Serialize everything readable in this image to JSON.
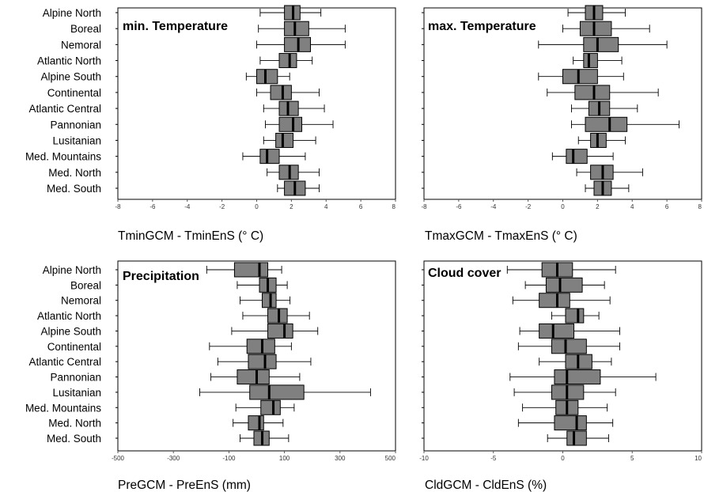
{
  "chart_data": [
    {
      "type": "box",
      "title": "min. Temperature",
      "xlabel": "TminGCM - TminEnS (°  C)",
      "xlim": [
        -8,
        8
      ],
      "xticks": [
        "-8",
        "-6",
        "-4",
        "-2",
        "0",
        "2",
        "4",
        "6",
        "8"
      ],
      "xtick_values": [
        -8,
        -6,
        -4,
        -2,
        0,
        2,
        4,
        6,
        8
      ],
      "categories": [
        "Alpine North",
        "Boreal",
        "Nemoral",
        "Atlantic North",
        "Alpine South",
        "Continental",
        "Atlantic Central",
        "Pannonian",
        "Lusitanian",
        "Med. Mountains",
        "Med. North",
        "Med. South"
      ],
      "boxes": [
        {
          "whisker_low": 0.2,
          "q1": 1.6,
          "median": 2.1,
          "q3": 2.5,
          "whisker_high": 3.7
        },
        {
          "whisker_low": 0.1,
          "q1": 1.6,
          "median": 2.2,
          "q3": 3.0,
          "whisker_high": 5.1
        },
        {
          "whisker_low": 0.0,
          "q1": 1.6,
          "median": 2.4,
          "q3": 3.1,
          "whisker_high": 5.1
        },
        {
          "whisker_low": 0.2,
          "q1": 1.3,
          "median": 1.9,
          "q3": 2.3,
          "whisker_high": 3.2
        },
        {
          "whisker_low": -0.6,
          "q1": 0.0,
          "median": 0.5,
          "q3": 1.2,
          "whisker_high": 1.9
        },
        {
          "whisker_low": 0.0,
          "q1": 0.8,
          "median": 1.5,
          "q3": 2.0,
          "whisker_high": 3.6
        },
        {
          "whisker_low": 0.4,
          "q1": 1.3,
          "median": 1.8,
          "q3": 2.4,
          "whisker_high": 3.9
        },
        {
          "whisker_low": 0.5,
          "q1": 1.3,
          "median": 2.1,
          "q3": 2.6,
          "whisker_high": 4.4
        },
        {
          "whisker_low": 0.4,
          "q1": 1.1,
          "median": 1.5,
          "q3": 2.1,
          "whisker_high": 3.4
        },
        {
          "whisker_low": -0.8,
          "q1": 0.2,
          "median": 0.6,
          "q3": 1.3,
          "whisker_high": 2.8
        },
        {
          "whisker_low": 0.6,
          "q1": 1.3,
          "median": 1.9,
          "q3": 2.4,
          "whisker_high": 3.6
        },
        {
          "whisker_low": 1.2,
          "q1": 1.6,
          "median": 2.2,
          "q3": 2.8,
          "whisker_high": 3.6
        }
      ]
    },
    {
      "type": "box",
      "title": "max. Temperature",
      "xlabel": "TmaxGCM - TmaxEnS (°  C)",
      "xlim": [
        -8,
        8
      ],
      "xticks": [
        "-8",
        "-6",
        "-4",
        "-2",
        "0",
        "2",
        "4",
        "6",
        "8"
      ],
      "xtick_values": [
        -8,
        -6,
        -4,
        -2,
        0,
        2,
        4,
        6,
        8
      ],
      "categories": [
        "Alpine North",
        "Boreal",
        "Nemoral",
        "Atlantic North",
        "Alpine South",
        "Continental",
        "Atlantic Central",
        "Pannonian",
        "Lusitanian",
        "Med. Mountains",
        "Med. North",
        "Med. South"
      ],
      "boxes": [
        {
          "whisker_low": 0.3,
          "q1": 1.3,
          "median": 1.8,
          "q3": 2.3,
          "whisker_high": 3.6
        },
        {
          "whisker_low": 0.0,
          "q1": 1.0,
          "median": 1.8,
          "q3": 2.8,
          "whisker_high": 5.0
        },
        {
          "whisker_low": -1.4,
          "q1": 1.2,
          "median": 2.0,
          "q3": 3.2,
          "whisker_high": 6.0
        },
        {
          "whisker_low": 0.6,
          "q1": 1.2,
          "median": 1.5,
          "q3": 2.0,
          "whisker_high": 3.4
        },
        {
          "whisker_low": -1.4,
          "q1": 0.0,
          "median": 0.9,
          "q3": 2.0,
          "whisker_high": 3.5
        },
        {
          "whisker_low": -0.9,
          "q1": 0.7,
          "median": 1.8,
          "q3": 2.7,
          "whisker_high": 5.5
        },
        {
          "whisker_low": 0.5,
          "q1": 1.5,
          "median": 2.1,
          "q3": 2.7,
          "whisker_high": 4.3
        },
        {
          "whisker_low": 0.5,
          "q1": 1.3,
          "median": 2.7,
          "q3": 3.7,
          "whisker_high": 6.7
        },
        {
          "whisker_low": 0.9,
          "q1": 1.6,
          "median": 2.0,
          "q3": 2.5,
          "whisker_high": 3.6
        },
        {
          "whisker_low": -0.6,
          "q1": 0.2,
          "median": 0.6,
          "q3": 1.4,
          "whisker_high": 2.9
        },
        {
          "whisker_low": 0.8,
          "q1": 1.6,
          "median": 2.3,
          "q3": 2.9,
          "whisker_high": 4.6
        },
        {
          "whisker_low": 1.3,
          "q1": 1.8,
          "median": 2.3,
          "q3": 2.8,
          "whisker_high": 3.8
        }
      ]
    },
    {
      "type": "box",
      "title": "Precipitation",
      "xlabel": "PreGCM - PreEnS (mm)",
      "xlim": [
        -500,
        500
      ],
      "xticks": [
        "-500",
        "-300",
        "-100",
        "100",
        "300",
        "500"
      ],
      "xtick_values": [
        -500,
        -300,
        -100,
        100,
        300,
        500
      ],
      "categories": [
        "Alpine North",
        "Boreal",
        "Nemoral",
        "Atlantic North",
        "Alpine South",
        "Continental",
        "Atlantic Central",
        "Pannonian",
        "Lusitanian",
        "Med. Mountains",
        "Med. North",
        "Med. South"
      ],
      "boxes": [
        {
          "whisker_low": -180,
          "q1": -80,
          "median": 10,
          "q3": 40,
          "whisker_high": 90
        },
        {
          "whisker_low": -70,
          "q1": 10,
          "median": 40,
          "q3": 70,
          "whisker_high": 110
        },
        {
          "whisker_low": -60,
          "q1": 20,
          "median": 50,
          "q3": 70,
          "whisker_high": 120
        },
        {
          "whisker_low": -50,
          "q1": 40,
          "median": 80,
          "q3": 110,
          "whisker_high": 190
        },
        {
          "whisker_low": -90,
          "q1": 40,
          "median": 100,
          "q3": 130,
          "whisker_high": 220
        },
        {
          "whisker_low": -170,
          "q1": -35,
          "median": 20,
          "q3": 65,
          "whisker_high": 125
        },
        {
          "whisker_low": -140,
          "q1": -30,
          "median": 30,
          "q3": 70,
          "whisker_high": 195
        },
        {
          "whisker_low": -165,
          "q1": -70,
          "median": 0,
          "q3": 45,
          "whisker_high": 155
        },
        {
          "whisker_low": -205,
          "q1": -25,
          "median": 45,
          "q3": 170,
          "whisker_high": 410
        },
        {
          "whisker_low": -75,
          "q1": 15,
          "median": 60,
          "q3": 85,
          "whisker_high": 135
        },
        {
          "whisker_low": -85,
          "q1": -30,
          "median": 10,
          "q3": 25,
          "whisker_high": 95
        },
        {
          "whisker_low": -60,
          "q1": -10,
          "median": 20,
          "q3": 45,
          "whisker_high": 115
        }
      ]
    },
    {
      "type": "box",
      "title": "Cloud cover",
      "xlabel": "CldGCM - CldEnS (%)",
      "xlim": [
        -10,
        10
      ],
      "xticks": [
        "-10",
        "-5",
        "0",
        "5",
        "10"
      ],
      "xtick_values": [
        -10,
        -5,
        0,
        5,
        10
      ],
      "categories": [
        "Alpine North",
        "Boreal",
        "Nemoral",
        "Atlantic North",
        "Alpine South",
        "Continental",
        "Atlantic Central",
        "Pannonian",
        "Lusitanian",
        "Med. Mountains",
        "Med. North",
        "Med. South"
      ],
      "boxes": [
        {
          "whisker_low": -4.0,
          "q1": -1.5,
          "median": -0.4,
          "q3": 0.7,
          "whisker_high": 3.8
        },
        {
          "whisker_low": -2.7,
          "q1": -1.2,
          "median": -0.2,
          "q3": 1.4,
          "whisker_high": 3.0
        },
        {
          "whisker_low": -3.6,
          "q1": -1.7,
          "median": -0.4,
          "q3": 0.5,
          "whisker_high": 3.4
        },
        {
          "whisker_low": -0.8,
          "q1": 0.2,
          "median": 1.1,
          "q3": 1.5,
          "whisker_high": 2.6
        },
        {
          "whisker_low": -3.1,
          "q1": -1.7,
          "median": -0.7,
          "q3": 0.8,
          "whisker_high": 4.1
        },
        {
          "whisker_low": -3.2,
          "q1": -0.8,
          "median": 0.2,
          "q3": 1.7,
          "whisker_high": 4.1
        },
        {
          "whisker_low": -1.7,
          "q1": 0.2,
          "median": 1.1,
          "q3": 2.1,
          "whisker_high": 3.5
        },
        {
          "whisker_low": -3.8,
          "q1": -0.6,
          "median": 0.3,
          "q3": 2.7,
          "whisker_high": 6.7
        },
        {
          "whisker_low": -3.5,
          "q1": -0.8,
          "median": 0.3,
          "q3": 1.5,
          "whisker_high": 3.8
        },
        {
          "whisker_low": -2.9,
          "q1": -0.5,
          "median": 0.3,
          "q3": 1.1,
          "whisker_high": 3.2
        },
        {
          "whisker_low": -3.2,
          "q1": -0.6,
          "median": 1.0,
          "q3": 1.7,
          "whisker_high": 3.6
        },
        {
          "whisker_low": -1.1,
          "q1": 0.3,
          "median": 0.8,
          "q3": 1.7,
          "whisker_high": 3.3
        }
      ]
    }
  ],
  "colors": {
    "box_fill": "#808080",
    "stroke": "#000000",
    "axis": "#555555"
  }
}
